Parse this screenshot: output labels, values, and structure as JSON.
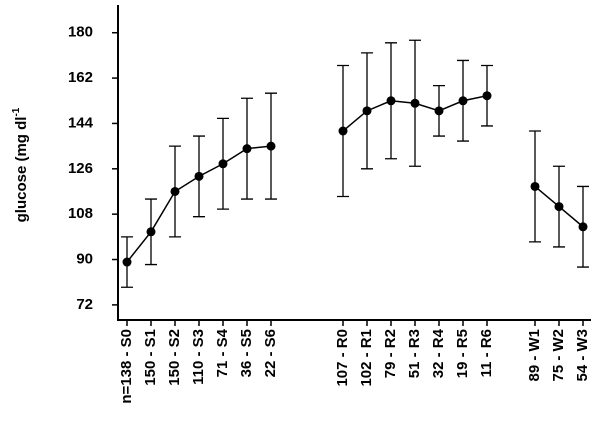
{
  "chart_data": {
    "type": "line",
    "y_label": "glucose (mg dl",
    "y_label_sup": "-1",
    "categories": [
      "n=138 - S0",
      "150 - S1",
      "150 - S2",
      "110 - S3",
      "71 - S4",
      "36 - S5",
      "22 - S6",
      null,
      null,
      "107 - R0",
      "102 - R1",
      "79 - R2",
      "51 - R3",
      "32 - R4",
      "19 - R5",
      "11 - R6",
      null,
      "89 - W1",
      "75 - W2",
      "54 - W3"
    ],
    "series": [
      {
        "color": "#000000",
        "values": [
          89,
          101,
          117,
          123,
          128,
          134,
          135,
          null,
          null,
          141,
          149,
          153,
          152,
          149,
          153,
          155,
          null,
          119,
          111,
          103
        ],
        "errors": [
          10,
          13,
          18,
          16,
          18,
          20,
          21,
          null,
          null,
          26,
          23,
          23,
          25,
          10,
          16,
          12,
          null,
          22,
          16,
          16
        ]
      }
    ],
    "ylim": [
      66,
      191
    ],
    "yticks": [
      72,
      90,
      108,
      126,
      144,
      162,
      180
    ],
    "grid": false
  }
}
